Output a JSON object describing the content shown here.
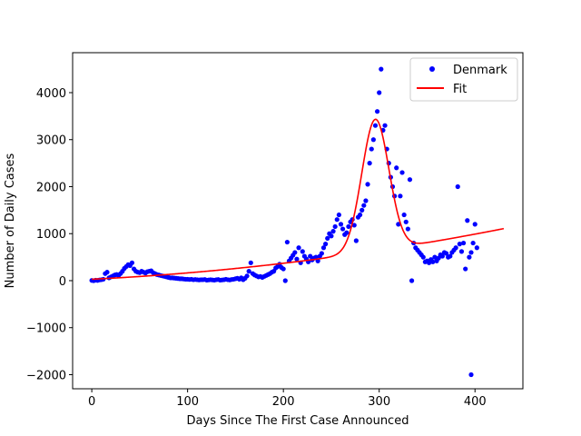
{
  "chart_data": {
    "type": "scatter",
    "xlabel": "Days Since The First Case Announced",
    "ylabel": "Number of Daily Cases",
    "xlim": [
      -20,
      450
    ],
    "ylim": [
      -2300,
      4850
    ],
    "xticks": [
      0,
      100,
      200,
      300,
      400
    ],
    "yticks": [
      -2000,
      -1000,
      0,
      1000,
      2000,
      3000,
      4000
    ],
    "ytick_labels": [
      "−2000",
      "−1000",
      "0",
      "1000",
      "2000",
      "3000",
      "4000"
    ],
    "grid": false,
    "legend_position": "top-right",
    "series": [
      {
        "name": "Denmark",
        "kind": "scatter",
        "color": "#0000ff",
        "points": [
          [
            0,
            5
          ],
          [
            2,
            0
          ],
          [
            4,
            10
          ],
          [
            6,
            5
          ],
          [
            8,
            15
          ],
          [
            10,
            20
          ],
          [
            12,
            30
          ],
          [
            14,
            150
          ],
          [
            16,
            180
          ],
          [
            18,
            60
          ],
          [
            20,
            80
          ],
          [
            22,
            100
          ],
          [
            24,
            120
          ],
          [
            26,
            130
          ],
          [
            28,
            110
          ],
          [
            30,
            150
          ],
          [
            32,
            200
          ],
          [
            34,
            260
          ],
          [
            36,
            300
          ],
          [
            38,
            340
          ],
          [
            40,
            320
          ],
          [
            42,
            380
          ],
          [
            44,
            250
          ],
          [
            46,
            200
          ],
          [
            48,
            180
          ],
          [
            50,
            170
          ],
          [
            52,
            200
          ],
          [
            54,
            180
          ],
          [
            56,
            160
          ],
          [
            58,
            190
          ],
          [
            60,
            200
          ],
          [
            62,
            210
          ],
          [
            64,
            170
          ],
          [
            66,
            150
          ],
          [
            68,
            130
          ],
          [
            70,
            120
          ],
          [
            72,
            110
          ],
          [
            74,
            100
          ],
          [
            76,
            90
          ],
          [
            78,
            80
          ],
          [
            80,
            70
          ],
          [
            82,
            60
          ],
          [
            84,
            60
          ],
          [
            86,
            55
          ],
          [
            88,
            50
          ],
          [
            90,
            45
          ],
          [
            92,
            40
          ],
          [
            94,
            40
          ],
          [
            96,
            35
          ],
          [
            98,
            30
          ],
          [
            100,
            30
          ],
          [
            102,
            25
          ],
          [
            104,
            30
          ],
          [
            106,
            20
          ],
          [
            108,
            25
          ],
          [
            110,
            20
          ],
          [
            112,
            15
          ],
          [
            114,
            20
          ],
          [
            116,
            20
          ],
          [
            118,
            25
          ],
          [
            120,
            10
          ],
          [
            122,
            15
          ],
          [
            124,
            20
          ],
          [
            126,
            15
          ],
          [
            128,
            10
          ],
          [
            130,
            20
          ],
          [
            132,
            25
          ],
          [
            134,
            10
          ],
          [
            136,
            15
          ],
          [
            138,
            20
          ],
          [
            140,
            30
          ],
          [
            142,
            20
          ],
          [
            144,
            15
          ],
          [
            146,
            25
          ],
          [
            148,
            30
          ],
          [
            150,
            40
          ],
          [
            152,
            50
          ],
          [
            154,
            30
          ],
          [
            156,
            60
          ],
          [
            158,
            20
          ],
          [
            160,
            50
          ],
          [
            162,
            100
          ],
          [
            164,
            200
          ],
          [
            166,
            380
          ],
          [
            168,
            150
          ],
          [
            170,
            120
          ],
          [
            172,
            100
          ],
          [
            174,
            80
          ],
          [
            176,
            90
          ],
          [
            178,
            70
          ],
          [
            180,
            90
          ],
          [
            182,
            110
          ],
          [
            184,
            130
          ],
          [
            186,
            150
          ],
          [
            188,
            180
          ],
          [
            190,
            200
          ],
          [
            192,
            270
          ],
          [
            194,
            300
          ],
          [
            196,
            350
          ],
          [
            198,
            280
          ],
          [
            200,
            250
          ],
          [
            202,
            0
          ],
          [
            204,
            820
          ],
          [
            206,
            420
          ],
          [
            208,
            480
          ],
          [
            210,
            540
          ],
          [
            212,
            600
          ],
          [
            214,
            460
          ],
          [
            216,
            700
          ],
          [
            218,
            380
          ],
          [
            220,
            620
          ],
          [
            222,
            520
          ],
          [
            224,
            460
          ],
          [
            226,
            400
          ],
          [
            228,
            520
          ],
          [
            230,
            440
          ],
          [
            232,
            480
          ],
          [
            234,
            500
          ],
          [
            236,
            420
          ],
          [
            238,
            520
          ],
          [
            240,
            580
          ],
          [
            242,
            700
          ],
          [
            244,
            780
          ],
          [
            246,
            900
          ],
          [
            248,
            1000
          ],
          [
            250,
            950
          ],
          [
            252,
            1050
          ],
          [
            254,
            1150
          ],
          [
            256,
            1300
          ],
          [
            258,
            1400
          ],
          [
            260,
            1200
          ],
          [
            262,
            1100
          ],
          [
            264,
            980
          ],
          [
            266,
            1020
          ],
          [
            268,
            1150
          ],
          [
            270,
            1250
          ],
          [
            272,
            1300
          ],
          [
            274,
            1180
          ],
          [
            276,
            850
          ],
          [
            278,
            1350
          ],
          [
            280,
            1400
          ],
          [
            282,
            1500
          ],
          [
            284,
            1600
          ],
          [
            286,
            1700
          ],
          [
            288,
            2050
          ],
          [
            290,
            2500
          ],
          [
            292,
            2800
          ],
          [
            294,
            3000
          ],
          [
            296,
            3300
          ],
          [
            298,
            3600
          ],
          [
            300,
            4000
          ],
          [
            302,
            4500
          ],
          [
            304,
            3200
          ],
          [
            306,
            3300
          ],
          [
            308,
            2800
          ],
          [
            310,
            2500
          ],
          [
            312,
            2200
          ],
          [
            314,
            2000
          ],
          [
            316,
            1800
          ],
          [
            318,
            2400
          ],
          [
            320,
            1200
          ],
          [
            322,
            1800
          ],
          [
            324,
            2300
          ],
          [
            326,
            1400
          ],
          [
            328,
            1250
          ],
          [
            330,
            1100
          ],
          [
            332,
            2150
          ],
          [
            334,
            0
          ],
          [
            336,
            800
          ],
          [
            338,
            700
          ],
          [
            340,
            650
          ],
          [
            342,
            600
          ],
          [
            344,
            550
          ],
          [
            346,
            500
          ],
          [
            348,
            400
          ],
          [
            350,
            420
          ],
          [
            352,
            380
          ],
          [
            354,
            450
          ],
          [
            356,
            400
          ],
          [
            358,
            500
          ],
          [
            360,
            420
          ],
          [
            362,
            480
          ],
          [
            364,
            550
          ],
          [
            366,
            520
          ],
          [
            368,
            600
          ],
          [
            370,
            580
          ],
          [
            372,
            500
          ],
          [
            374,
            520
          ],
          [
            376,
            600
          ],
          [
            378,
            650
          ],
          [
            380,
            700
          ],
          [
            382,
            2000
          ],
          [
            384,
            780
          ],
          [
            386,
            620
          ],
          [
            388,
            800
          ],
          [
            390,
            250
          ],
          [
            392,
            1280
          ],
          [
            394,
            500
          ],
          [
            396,
            600
          ],
          [
            398,
            800
          ],
          [
            400,
            1200
          ],
          [
            402,
            700
          ],
          [
            396,
            -2000
          ]
        ]
      },
      {
        "name": "Fit",
        "kind": "line",
        "color": "#ff0000"
      }
    ]
  }
}
